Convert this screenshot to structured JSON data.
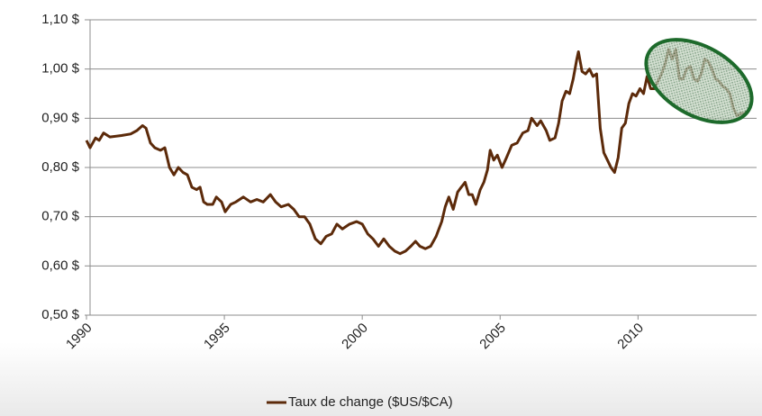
{
  "chart_data": {
    "type": "line",
    "x": [
      1990.0,
      1990.13,
      1990.33,
      1990.46,
      1990.62,
      1990.85,
      1991.27,
      1991.6,
      1991.83,
      1992.03,
      1992.16,
      1992.32,
      1992.48,
      1992.68,
      1992.84,
      1993.01,
      1993.17,
      1993.33,
      1993.5,
      1993.66,
      1993.82,
      1993.99,
      1994.12,
      1994.25,
      1994.38,
      1994.58,
      1994.71,
      1994.9,
      1995.03,
      1995.23,
      1995.42,
      1995.69,
      1995.95,
      1996.18,
      1996.41,
      1996.67,
      1996.86,
      1997.06,
      1997.32,
      1997.52,
      1997.71,
      1997.91,
      1998.1,
      1998.3,
      1998.5,
      1998.69,
      1998.89,
      1999.08,
      1999.28,
      1999.54,
      1999.8,
      2000.0,
      2000.2,
      2000.39,
      2000.59,
      2000.78,
      2000.98,
      2001.18,
      2001.37,
      2001.57,
      2001.76,
      2001.93,
      2002.09,
      2002.29,
      2002.48,
      2002.68,
      2002.88,
      2003.01,
      2003.14,
      2003.3,
      2003.46,
      2003.59,
      2003.73,
      2003.86,
      2003.99,
      2004.12,
      2004.28,
      2004.41,
      2004.54,
      2004.64,
      2004.77,
      2004.9,
      2005.07,
      2005.23,
      2005.42,
      2005.62,
      2005.82,
      2006.01,
      2006.14,
      2006.34,
      2006.47,
      2006.67,
      2006.8,
      2006.99,
      2007.12,
      2007.25,
      2007.39,
      2007.52,
      2007.65,
      2007.78,
      2007.84,
      2007.97,
      2008.1,
      2008.24,
      2008.37,
      2008.5,
      2008.63,
      2008.76,
      2008.89,
      2009.02,
      2009.15,
      2009.28,
      2009.41,
      2009.54,
      2009.67,
      2009.8,
      2009.93,
      2010.07,
      2010.2,
      2010.33,
      2010.46,
      2010.59,
      2010.72,
      2010.85,
      2010.98,
      2011.11,
      2011.24,
      2011.37,
      2011.5,
      2011.63,
      2011.76,
      2011.9,
      2012.03,
      2012.16,
      2012.29,
      2012.42,
      2012.55,
      2012.68,
      2012.81,
      2012.94,
      2013.07,
      2013.2,
      2013.33,
      2013.46,
      2013.59,
      2013.73,
      2013.86,
      2013.99
    ],
    "series": [
      {
        "name": "Taux de change ($US/$CA)",
        "color": "#5c2a0a",
        "values": [
          0.855,
          0.84,
          0.86,
          0.855,
          0.87,
          0.862,
          0.865,
          0.868,
          0.875,
          0.885,
          0.88,
          0.85,
          0.84,
          0.835,
          0.84,
          0.8,
          0.785,
          0.8,
          0.79,
          0.785,
          0.76,
          0.755,
          0.76,
          0.73,
          0.725,
          0.725,
          0.74,
          0.73,
          0.71,
          0.725,
          0.73,
          0.74,
          0.73,
          0.735,
          0.73,
          0.745,
          0.73,
          0.72,
          0.725,
          0.715,
          0.7,
          0.7,
          0.685,
          0.655,
          0.645,
          0.66,
          0.665,
          0.685,
          0.675,
          0.685,
          0.69,
          0.685,
          0.665,
          0.655,
          0.64,
          0.655,
          0.64,
          0.63,
          0.625,
          0.63,
          0.64,
          0.65,
          0.64,
          0.635,
          0.64,
          0.66,
          0.69,
          0.72,
          0.74,
          0.715,
          0.75,
          0.76,
          0.77,
          0.745,
          0.745,
          0.725,
          0.755,
          0.77,
          0.795,
          0.835,
          0.815,
          0.825,
          0.8,
          0.82,
          0.845,
          0.85,
          0.87,
          0.875,
          0.9,
          0.885,
          0.895,
          0.875,
          0.855,
          0.86,
          0.89,
          0.935,
          0.955,
          0.95,
          0.98,
          1.02,
          1.035,
          0.995,
          0.99,
          1.0,
          0.985,
          0.99,
          0.88,
          0.83,
          0.815,
          0.8,
          0.79,
          0.82,
          0.88,
          0.89,
          0.93,
          0.95,
          0.945,
          0.96,
          0.95,
          0.985,
          0.96,
          0.96,
          0.975,
          0.99,
          1.01,
          1.04,
          1.02,
          1.04,
          0.98,
          0.98,
          1.0,
          1.005,
          0.98,
          0.975,
          0.99,
          1.02,
          1.015,
          1.0,
          0.98,
          0.975,
          0.965,
          0.96,
          0.95,
          0.92,
          0.905,
          0.91,
          0.91,
          0.915
        ]
      }
    ],
    "xlim": [
      1990,
      2014.3
    ],
    "xticks": [
      1990,
      1995,
      2000,
      2005,
      2010
    ],
    "ylim": [
      0.5,
      1.1
    ],
    "yticks": [
      {
        "value": 0.5,
        "label": "0,50 $"
      },
      {
        "value": 0.6,
        "label": "0,60 $"
      },
      {
        "value": 0.7,
        "label": "0,70 $"
      },
      {
        "value": 0.8,
        "label": "0,80 $"
      },
      {
        "value": 0.9,
        "label": "0,90 $"
      },
      {
        "value": 1.0,
        "label": "1,00 $"
      },
      {
        "value": 1.1,
        "label": "1,10 $"
      }
    ],
    "grid": true,
    "legend": "bottom"
  }
}
